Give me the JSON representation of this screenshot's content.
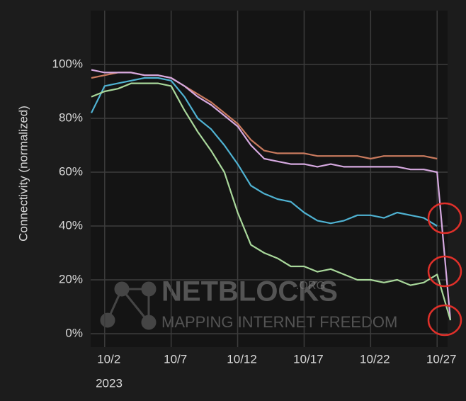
{
  "chart_data": {
    "type": "line",
    "y_label": "Connectivity (normalized)",
    "x": [
      "2023-10-01",
      "2023-10-02",
      "2023-10-03",
      "2023-10-04",
      "2023-10-05",
      "2023-10-06",
      "2023-10-07",
      "2023-10-08",
      "2023-10-09",
      "2023-10-10",
      "2023-10-11",
      "2023-10-12",
      "2023-10-13",
      "2023-10-14",
      "2023-10-15",
      "2023-10-16",
      "2023-10-17",
      "2023-10-18",
      "2023-10-19",
      "2023-10-20",
      "2023-10-21",
      "2023-10-22",
      "2023-10-23",
      "2023-10-24",
      "2023-10-25",
      "2023-10-26",
      "2023-10-27",
      "2023-10-28"
    ],
    "series": [
      {
        "color": "#c97a5e",
        "values": [
          95,
          96,
          97,
          97,
          96,
          96,
          95,
          92,
          89,
          86,
          82,
          78,
          72,
          68,
          67,
          67,
          67,
          66,
          66,
          66,
          66,
          65,
          66,
          66,
          66,
          66,
          65,
          null
        ]
      },
      {
        "color": "#d6a9e0",
        "values": [
          98,
          97,
          97,
          97,
          96,
          96,
          95,
          92,
          88,
          85,
          81,
          77,
          70,
          65,
          64,
          63,
          63,
          62,
          63,
          62,
          62,
          62,
          62,
          62,
          61,
          61,
          60,
          5
        ]
      },
      {
        "color": "#4fb2d2",
        "values": [
          82,
          92,
          93,
          94,
          95,
          95,
          94,
          88,
          80,
          76,
          70,
          63,
          55,
          52,
          50,
          49,
          45,
          42,
          41,
          42,
          44,
          44,
          43,
          45,
          44,
          43,
          40,
          null
        ]
      },
      {
        "color": "#a9d89b",
        "values": [
          88,
          90,
          91,
          93,
          93,
          93,
          92,
          83,
          75,
          68,
          60,
          45,
          33,
          30,
          28,
          25,
          25,
          23,
          24,
          22,
          20,
          20,
          19,
          20,
          18,
          19,
          22,
          5
        ]
      }
    ],
    "xlim": [
      "2023-10-01",
      "2023-10-28"
    ],
    "xticks": [
      {
        "value": "2023-10-02",
        "label": "10/2"
      },
      {
        "value": "2023-10-07",
        "label": "10/7"
      },
      {
        "value": "2023-10-12",
        "label": "10/12"
      },
      {
        "value": "2023-10-17",
        "label": "10/17"
      },
      {
        "value": "2023-10-22",
        "label": "10/22"
      },
      {
        "value": "2023-10-27",
        "label": "10/27"
      }
    ],
    "x_year_label": "2023",
    "ylim": [
      -5,
      120
    ],
    "yticks": [
      {
        "value": 0,
        "label": "0%"
      },
      {
        "value": 20,
        "label": "20%"
      },
      {
        "value": 40,
        "label": "40%"
      },
      {
        "value": 60,
        "label": "60%"
      },
      {
        "value": 80,
        "label": "80%"
      },
      {
        "value": 100,
        "label": "100%"
      }
    ],
    "grid": true,
    "watermark": {
      "brand": "NETBLOCKS",
      "suffix": ".ORG",
      "tagline": "MAPPING INTERNET FREEDOM"
    }
  }
}
